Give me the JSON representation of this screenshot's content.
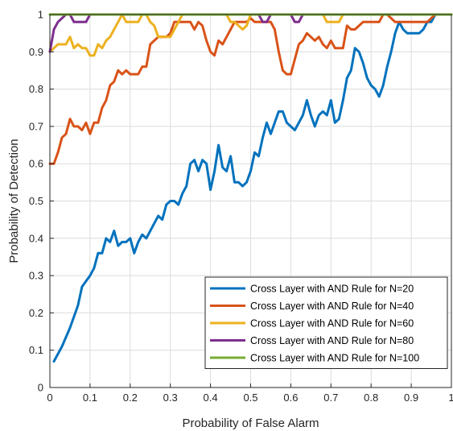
{
  "chart_data": {
    "type": "line",
    "title": "",
    "xlabel": "Probability of False Alarm",
    "ylabel": "Probability of Detection",
    "xlim": [
      0,
      1
    ],
    "ylim": [
      0,
      1
    ],
    "xticks": [
      "0",
      "0.1",
      "0.2",
      "0.3",
      "0.4",
      "0.5",
      "0.6",
      "0.7",
      "0.8",
      "0.9",
      "1"
    ],
    "yticks": [
      "0",
      "0.1",
      "0.2",
      "0.3",
      "0.4",
      "0.5",
      "0.6",
      "0.7",
      "0.8",
      "0.9",
      "1"
    ],
    "grid": true,
    "legend_position": "bottom-right",
    "series": [
      {
        "name": "Cross Layer with AND Rule for N=20",
        "color": "#0072BD",
        "points": [
          [
            0.01,
            0.07
          ],
          [
            0.03,
            0.11
          ],
          [
            0.05,
            0.16
          ],
          [
            0.07,
            0.22
          ],
          [
            0.08,
            0.27
          ],
          [
            0.09,
            0.285
          ],
          [
            0.1,
            0.3
          ],
          [
            0.11,
            0.32
          ],
          [
            0.12,
            0.36
          ],
          [
            0.13,
            0.36
          ],
          [
            0.14,
            0.4
          ],
          [
            0.15,
            0.39
          ],
          [
            0.16,
            0.42
          ],
          [
            0.17,
            0.38
          ],
          [
            0.18,
            0.39
          ],
          [
            0.19,
            0.39
          ],
          [
            0.2,
            0.4
          ],
          [
            0.21,
            0.36
          ],
          [
            0.22,
            0.39
          ],
          [
            0.23,
            0.41
          ],
          [
            0.24,
            0.4
          ],
          [
            0.25,
            0.42
          ],
          [
            0.26,
            0.44
          ],
          [
            0.27,
            0.46
          ],
          [
            0.28,
            0.45
          ],
          [
            0.29,
            0.49
          ],
          [
            0.3,
            0.5
          ],
          [
            0.31,
            0.5
          ],
          [
            0.32,
            0.49
          ],
          [
            0.33,
            0.52
          ],
          [
            0.34,
            0.54
          ],
          [
            0.35,
            0.6
          ],
          [
            0.36,
            0.61
          ],
          [
            0.37,
            0.58
          ],
          [
            0.38,
            0.61
          ],
          [
            0.39,
            0.6
          ],
          [
            0.4,
            0.53
          ],
          [
            0.41,
            0.58
          ],
          [
            0.42,
            0.65
          ],
          [
            0.43,
            0.59
          ],
          [
            0.44,
            0.58
          ],
          [
            0.45,
            0.62
          ],
          [
            0.46,
            0.55
          ],
          [
            0.47,
            0.55
          ],
          [
            0.48,
            0.54
          ],
          [
            0.49,
            0.55
          ],
          [
            0.5,
            0.58
          ],
          [
            0.51,
            0.63
          ],
          [
            0.52,
            0.62
          ],
          [
            0.53,
            0.67
          ],
          [
            0.54,
            0.71
          ],
          [
            0.55,
            0.68
          ],
          [
            0.56,
            0.71
          ],
          [
            0.57,
            0.74
          ],
          [
            0.58,
            0.74
          ],
          [
            0.59,
            0.71
          ],
          [
            0.6,
            0.7
          ],
          [
            0.61,
            0.69
          ],
          [
            0.62,
            0.71
          ],
          [
            0.63,
            0.73
          ],
          [
            0.64,
            0.77
          ],
          [
            0.65,
            0.73
          ],
          [
            0.66,
            0.7
          ],
          [
            0.67,
            0.73
          ],
          [
            0.68,
            0.74
          ],
          [
            0.69,
            0.73
          ],
          [
            0.7,
            0.77
          ],
          [
            0.71,
            0.71
          ],
          [
            0.72,
            0.72
          ],
          [
            0.73,
            0.77
          ],
          [
            0.74,
            0.83
          ],
          [
            0.75,
            0.85
          ],
          [
            0.76,
            0.91
          ],
          [
            0.77,
            0.9
          ],
          [
            0.78,
            0.87
          ],
          [
            0.79,
            0.83
          ],
          [
            0.8,
            0.81
          ],
          [
            0.81,
            0.8
          ],
          [
            0.82,
            0.78
          ],
          [
            0.83,
            0.81
          ],
          [
            0.84,
            0.86
          ],
          [
            0.85,
            0.9
          ],
          [
            0.86,
            0.95
          ],
          [
            0.87,
            0.98
          ],
          [
            0.88,
            0.96
          ],
          [
            0.89,
            0.95
          ],
          [
            0.9,
            0.95
          ],
          [
            0.91,
            0.95
          ],
          [
            0.92,
            0.95
          ],
          [
            0.93,
            0.96
          ],
          [
            0.94,
            0.98
          ],
          [
            0.95,
            0.98
          ],
          [
            0.96,
            1.0
          ],
          [
            0.97,
            1.0
          ],
          [
            0.98,
            1.0
          ],
          [
            0.99,
            1.0
          ],
          [
            1.0,
            1.0
          ]
        ]
      },
      {
        "name": "Cross Layer with AND Rule for N=40",
        "color": "#D95319",
        "points": [
          [
            0.0,
            0.6
          ],
          [
            0.01,
            0.6
          ],
          [
            0.02,
            0.63
          ],
          [
            0.03,
            0.67
          ],
          [
            0.04,
            0.68
          ],
          [
            0.05,
            0.72
          ],
          [
            0.06,
            0.7
          ],
          [
            0.07,
            0.7
          ],
          [
            0.08,
            0.69
          ],
          [
            0.09,
            0.71
          ],
          [
            0.1,
            0.68
          ],
          [
            0.11,
            0.71
          ],
          [
            0.12,
            0.71
          ],
          [
            0.13,
            0.75
          ],
          [
            0.14,
            0.77
          ],
          [
            0.15,
            0.81
          ],
          [
            0.16,
            0.82
          ],
          [
            0.17,
            0.85
          ],
          [
            0.18,
            0.84
          ],
          [
            0.19,
            0.85
          ],
          [
            0.2,
            0.84
          ],
          [
            0.21,
            0.84
          ],
          [
            0.22,
            0.84
          ],
          [
            0.23,
            0.86
          ],
          [
            0.24,
            0.86
          ],
          [
            0.25,
            0.92
          ],
          [
            0.26,
            0.93
          ],
          [
            0.27,
            0.94
          ],
          [
            0.28,
            0.94
          ],
          [
            0.29,
            0.94
          ],
          [
            0.3,
            0.95
          ],
          [
            0.31,
            0.98
          ],
          [
            0.32,
            0.98
          ],
          [
            0.33,
            0.98
          ],
          [
            0.34,
            0.98
          ],
          [
            0.35,
            0.98
          ],
          [
            0.36,
            0.96
          ],
          [
            0.37,
            0.98
          ],
          [
            0.38,
            0.97
          ],
          [
            0.39,
            0.93
          ],
          [
            0.4,
            0.9
          ],
          [
            0.41,
            0.89
          ],
          [
            0.42,
            0.93
          ],
          [
            0.43,
            0.92
          ],
          [
            0.44,
            0.94
          ],
          [
            0.45,
            0.96
          ],
          [
            0.46,
            0.98
          ],
          [
            0.47,
            0.98
          ],
          [
            0.48,
            0.98
          ],
          [
            0.49,
            0.98
          ],
          [
            0.5,
            0.99
          ],
          [
            0.51,
            0.98
          ],
          [
            0.52,
            0.98
          ],
          [
            0.53,
            0.98
          ],
          [
            0.54,
            0.98
          ],
          [
            0.55,
            0.98
          ],
          [
            0.56,
            0.96
          ],
          [
            0.57,
            0.9
          ],
          [
            0.58,
            0.85
          ],
          [
            0.59,
            0.84
          ],
          [
            0.6,
            0.84
          ],
          [
            0.61,
            0.88
          ],
          [
            0.62,
            0.92
          ],
          [
            0.63,
            0.93
          ],
          [
            0.64,
            0.95
          ],
          [
            0.65,
            0.94
          ],
          [
            0.66,
            0.93
          ],
          [
            0.67,
            0.94
          ],
          [
            0.68,
            0.92
          ],
          [
            0.69,
            0.91
          ],
          [
            0.7,
            0.93
          ],
          [
            0.71,
            0.91
          ],
          [
            0.72,
            0.91
          ],
          [
            0.73,
            0.91
          ],
          [
            0.74,
            0.97
          ],
          [
            0.75,
            0.96
          ],
          [
            0.76,
            0.96
          ],
          [
            0.77,
            0.97
          ],
          [
            0.78,
            0.98
          ],
          [
            0.79,
            0.98
          ],
          [
            0.8,
            0.98
          ],
          [
            0.81,
            0.98
          ],
          [
            0.82,
            0.98
          ],
          [
            0.83,
            1.0
          ],
          [
            0.84,
            1.0
          ],
          [
            0.85,
            0.99
          ],
          [
            0.86,
            0.98
          ],
          [
            0.87,
            0.98
          ],
          [
            0.88,
            0.98
          ],
          [
            0.89,
            0.98
          ],
          [
            0.9,
            0.98
          ],
          [
            0.91,
            0.98
          ],
          [
            0.92,
            0.98
          ],
          [
            0.93,
            0.98
          ],
          [
            0.94,
            0.98
          ],
          [
            0.95,
            0.99
          ],
          [
            0.96,
            1.0
          ],
          [
            1.0,
            1.0
          ]
        ]
      },
      {
        "name": "Cross Layer with AND Rule for N=60",
        "color": "#EDB120",
        "points": [
          [
            0.0,
            0.9
          ],
          [
            0.01,
            0.91
          ],
          [
            0.02,
            0.92
          ],
          [
            0.03,
            0.92
          ],
          [
            0.04,
            0.92
          ],
          [
            0.05,
            0.94
          ],
          [
            0.06,
            0.91
          ],
          [
            0.07,
            0.92
          ],
          [
            0.08,
            0.91
          ],
          [
            0.09,
            0.91
          ],
          [
            0.1,
            0.89
          ],
          [
            0.11,
            0.89
          ],
          [
            0.12,
            0.92
          ],
          [
            0.13,
            0.91
          ],
          [
            0.14,
            0.93
          ],
          [
            0.15,
            0.94
          ],
          [
            0.16,
            0.96
          ],
          [
            0.17,
            0.98
          ],
          [
            0.18,
            1.0
          ],
          [
            0.19,
            0.98
          ],
          [
            0.2,
            0.98
          ],
          [
            0.21,
            0.98
          ],
          [
            0.22,
            0.98
          ],
          [
            0.23,
            1.0
          ],
          [
            0.24,
            1.0
          ],
          [
            0.25,
            0.98
          ],
          [
            0.26,
            0.97
          ],
          [
            0.27,
            0.94
          ],
          [
            0.28,
            0.94
          ],
          [
            0.29,
            0.94
          ],
          [
            0.3,
            0.94
          ],
          [
            0.31,
            0.96
          ],
          [
            0.32,
            0.98
          ],
          [
            0.33,
            1.0
          ],
          [
            0.44,
            1.0
          ],
          [
            0.45,
            0.98
          ],
          [
            0.46,
            0.98
          ],
          [
            0.47,
            0.97
          ],
          [
            0.48,
            0.96
          ],
          [
            0.49,
            0.97
          ],
          [
            0.5,
            1.0
          ],
          [
            0.68,
            1.0
          ],
          [
            0.69,
            0.98
          ],
          [
            0.7,
            0.98
          ],
          [
            0.71,
            0.98
          ],
          [
            0.72,
            0.98
          ],
          [
            0.73,
            1.0
          ],
          [
            1.0,
            1.0
          ]
        ]
      },
      {
        "name": "Cross Layer with AND Rule for N=80",
        "color": "#7E2F8E",
        "points": [
          [
            0.0,
            0.9
          ],
          [
            0.01,
            0.96
          ],
          [
            0.02,
            0.98
          ],
          [
            0.03,
            0.99
          ],
          [
            0.04,
            1.0
          ],
          [
            0.05,
            1.0
          ],
          [
            0.06,
            0.98
          ],
          [
            0.07,
            0.98
          ],
          [
            0.08,
            0.98
          ],
          [
            0.09,
            0.98
          ],
          [
            0.1,
            1.0
          ],
          [
            0.52,
            1.0
          ],
          [
            0.53,
            0.98
          ],
          [
            0.54,
            0.98
          ],
          [
            0.55,
            1.0
          ],
          [
            0.6,
            1.0
          ],
          [
            0.61,
            0.98
          ],
          [
            0.62,
            0.98
          ],
          [
            0.63,
            1.0
          ],
          [
            1.0,
            1.0
          ]
        ]
      },
      {
        "name": "Cross Layer with AND Rule for N=100",
        "color": "#77AC30",
        "points": [
          [
            0.0,
            1.0
          ],
          [
            1.0,
            1.0
          ]
        ]
      }
    ]
  }
}
